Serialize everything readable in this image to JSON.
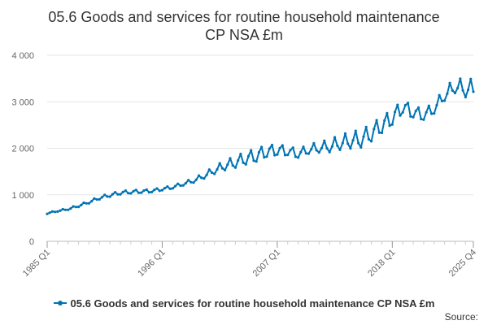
{
  "chart_data": {
    "type": "line",
    "title": "05.6 Goods and services for routine household maintenance CP NSA £m",
    "title_lines": [
      "05.6 Goods and services for routine household maintenance",
      "CP NSA £m"
    ],
    "xlabel": "",
    "ylabel": "",
    "x_tick_labels": [
      "1985 Q1",
      "1996 Q1",
      "2007 Q1",
      "2018 Q1",
      "2025 Q4"
    ],
    "y_tick_labels": [
      "0",
      "1 000",
      "2 000",
      "3 000",
      "4 000"
    ],
    "y_ticks": [
      0,
      1000,
      2000,
      3000,
      4000
    ],
    "ylim": [
      0,
      4000
    ],
    "x_start_year": 1985,
    "x_start_quarter": 1,
    "x_end_year": 2025,
    "x_end_quarter": 4,
    "grid": true,
    "legend_position": "bottom",
    "series": [
      {
        "name": "05.6 Goods and services for routine household maintenance CP NSA £m",
        "color": "#0074b3",
        "annual_levels": [
          [
            1985,
            600
          ],
          [
            1986,
            650
          ],
          [
            1987,
            690
          ],
          [
            1988,
            760
          ],
          [
            1989,
            840
          ],
          [
            1990,
            930
          ],
          [
            1991,
            990
          ],
          [
            1992,
            1040
          ],
          [
            1993,
            1060
          ],
          [
            1994,
            1070
          ],
          [
            1995,
            1080
          ],
          [
            1996,
            1120
          ],
          [
            1997,
            1160
          ],
          [
            1998,
            1230
          ],
          [
            1999,
            1300
          ],
          [
            2000,
            1400
          ],
          [
            2001,
            1520
          ],
          [
            2002,
            1620
          ],
          [
            2003,
            1690
          ],
          [
            2004,
            1770
          ],
          [
            2005,
            1830
          ],
          [
            2006,
            1920
          ],
          [
            2007,
            1950
          ],
          [
            2008,
            1930
          ],
          [
            2009,
            1870
          ],
          [
            2010,
            1960
          ],
          [
            2011,
            2000
          ],
          [
            2012,
            2030
          ],
          [
            2013,
            2100
          ],
          [
            2014,
            2150
          ],
          [
            2015,
            2180
          ],
          [
            2016,
            2310
          ],
          [
            2017,
            2480
          ],
          [
            2018,
            2640
          ],
          [
            2019,
            2880
          ],
          [
            2020,
            2760
          ],
          [
            2021,
            2700
          ],
          [
            2022,
            2840
          ],
          [
            2023,
            3130
          ],
          [
            2024,
            3320
          ],
          [
            2025,
            3260
          ]
        ],
        "seasonal_amplitude": [
          [
            1985,
            20
          ],
          [
            1995,
            40
          ],
          [
            2000,
            70
          ],
          [
            2005,
            140
          ],
          [
            2025,
            200
          ]
        ]
      }
    ]
  },
  "legend": {
    "label": "05.6 Goods and services for routine household maintenance CP NSA £m"
  },
  "source": {
    "label": "Source:"
  }
}
